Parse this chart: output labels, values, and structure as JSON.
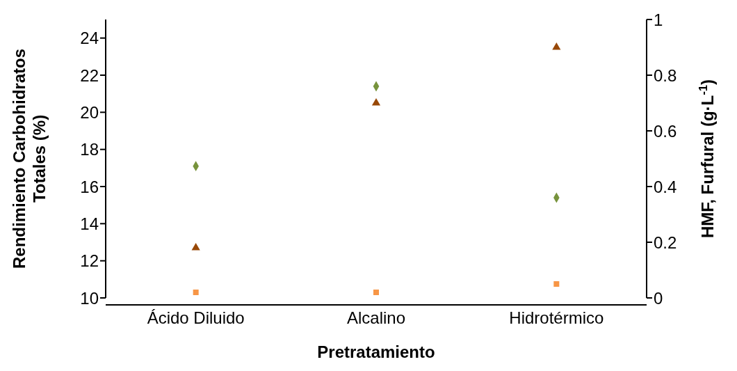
{
  "chart_data": {
    "type": "scatter",
    "xlabel": "Pretratamiento",
    "ylabel": "Rendimiento Carbohidratos Totales (%)",
    "y2label": "HMF, Furfural (g·L$^{-1}$)",
    "categories": [
      "Ácido Diluido",
      "Alcalino",
      "Hidrotérmico"
    ],
    "ylim": [
      10,
      25
    ],
    "yticks": [
      10,
      12,
      14,
      16,
      18,
      20,
      22,
      24
    ],
    "y2lim": [
      0,
      1
    ],
    "y2ticks": [
      0,
      0.2,
      0.4,
      0.6,
      0.8,
      1
    ],
    "grid": false,
    "legend": false,
    "series": [
      {
        "color": "#77933c",
        "marker": "diamond",
        "values": [
          17.1,
          21.4,
          15.4
        ]
      },
      {
        "color": "#984807",
        "marker": "triangle",
        "axis": "y2",
        "values": [
          0.18,
          0.7,
          0.9
        ]
      },
      {
        "color": "#f79646",
        "marker": "square",
        "axis": "y2",
        "values": [
          0.02,
          0.02,
          0.05
        ]
      }
    ]
  }
}
